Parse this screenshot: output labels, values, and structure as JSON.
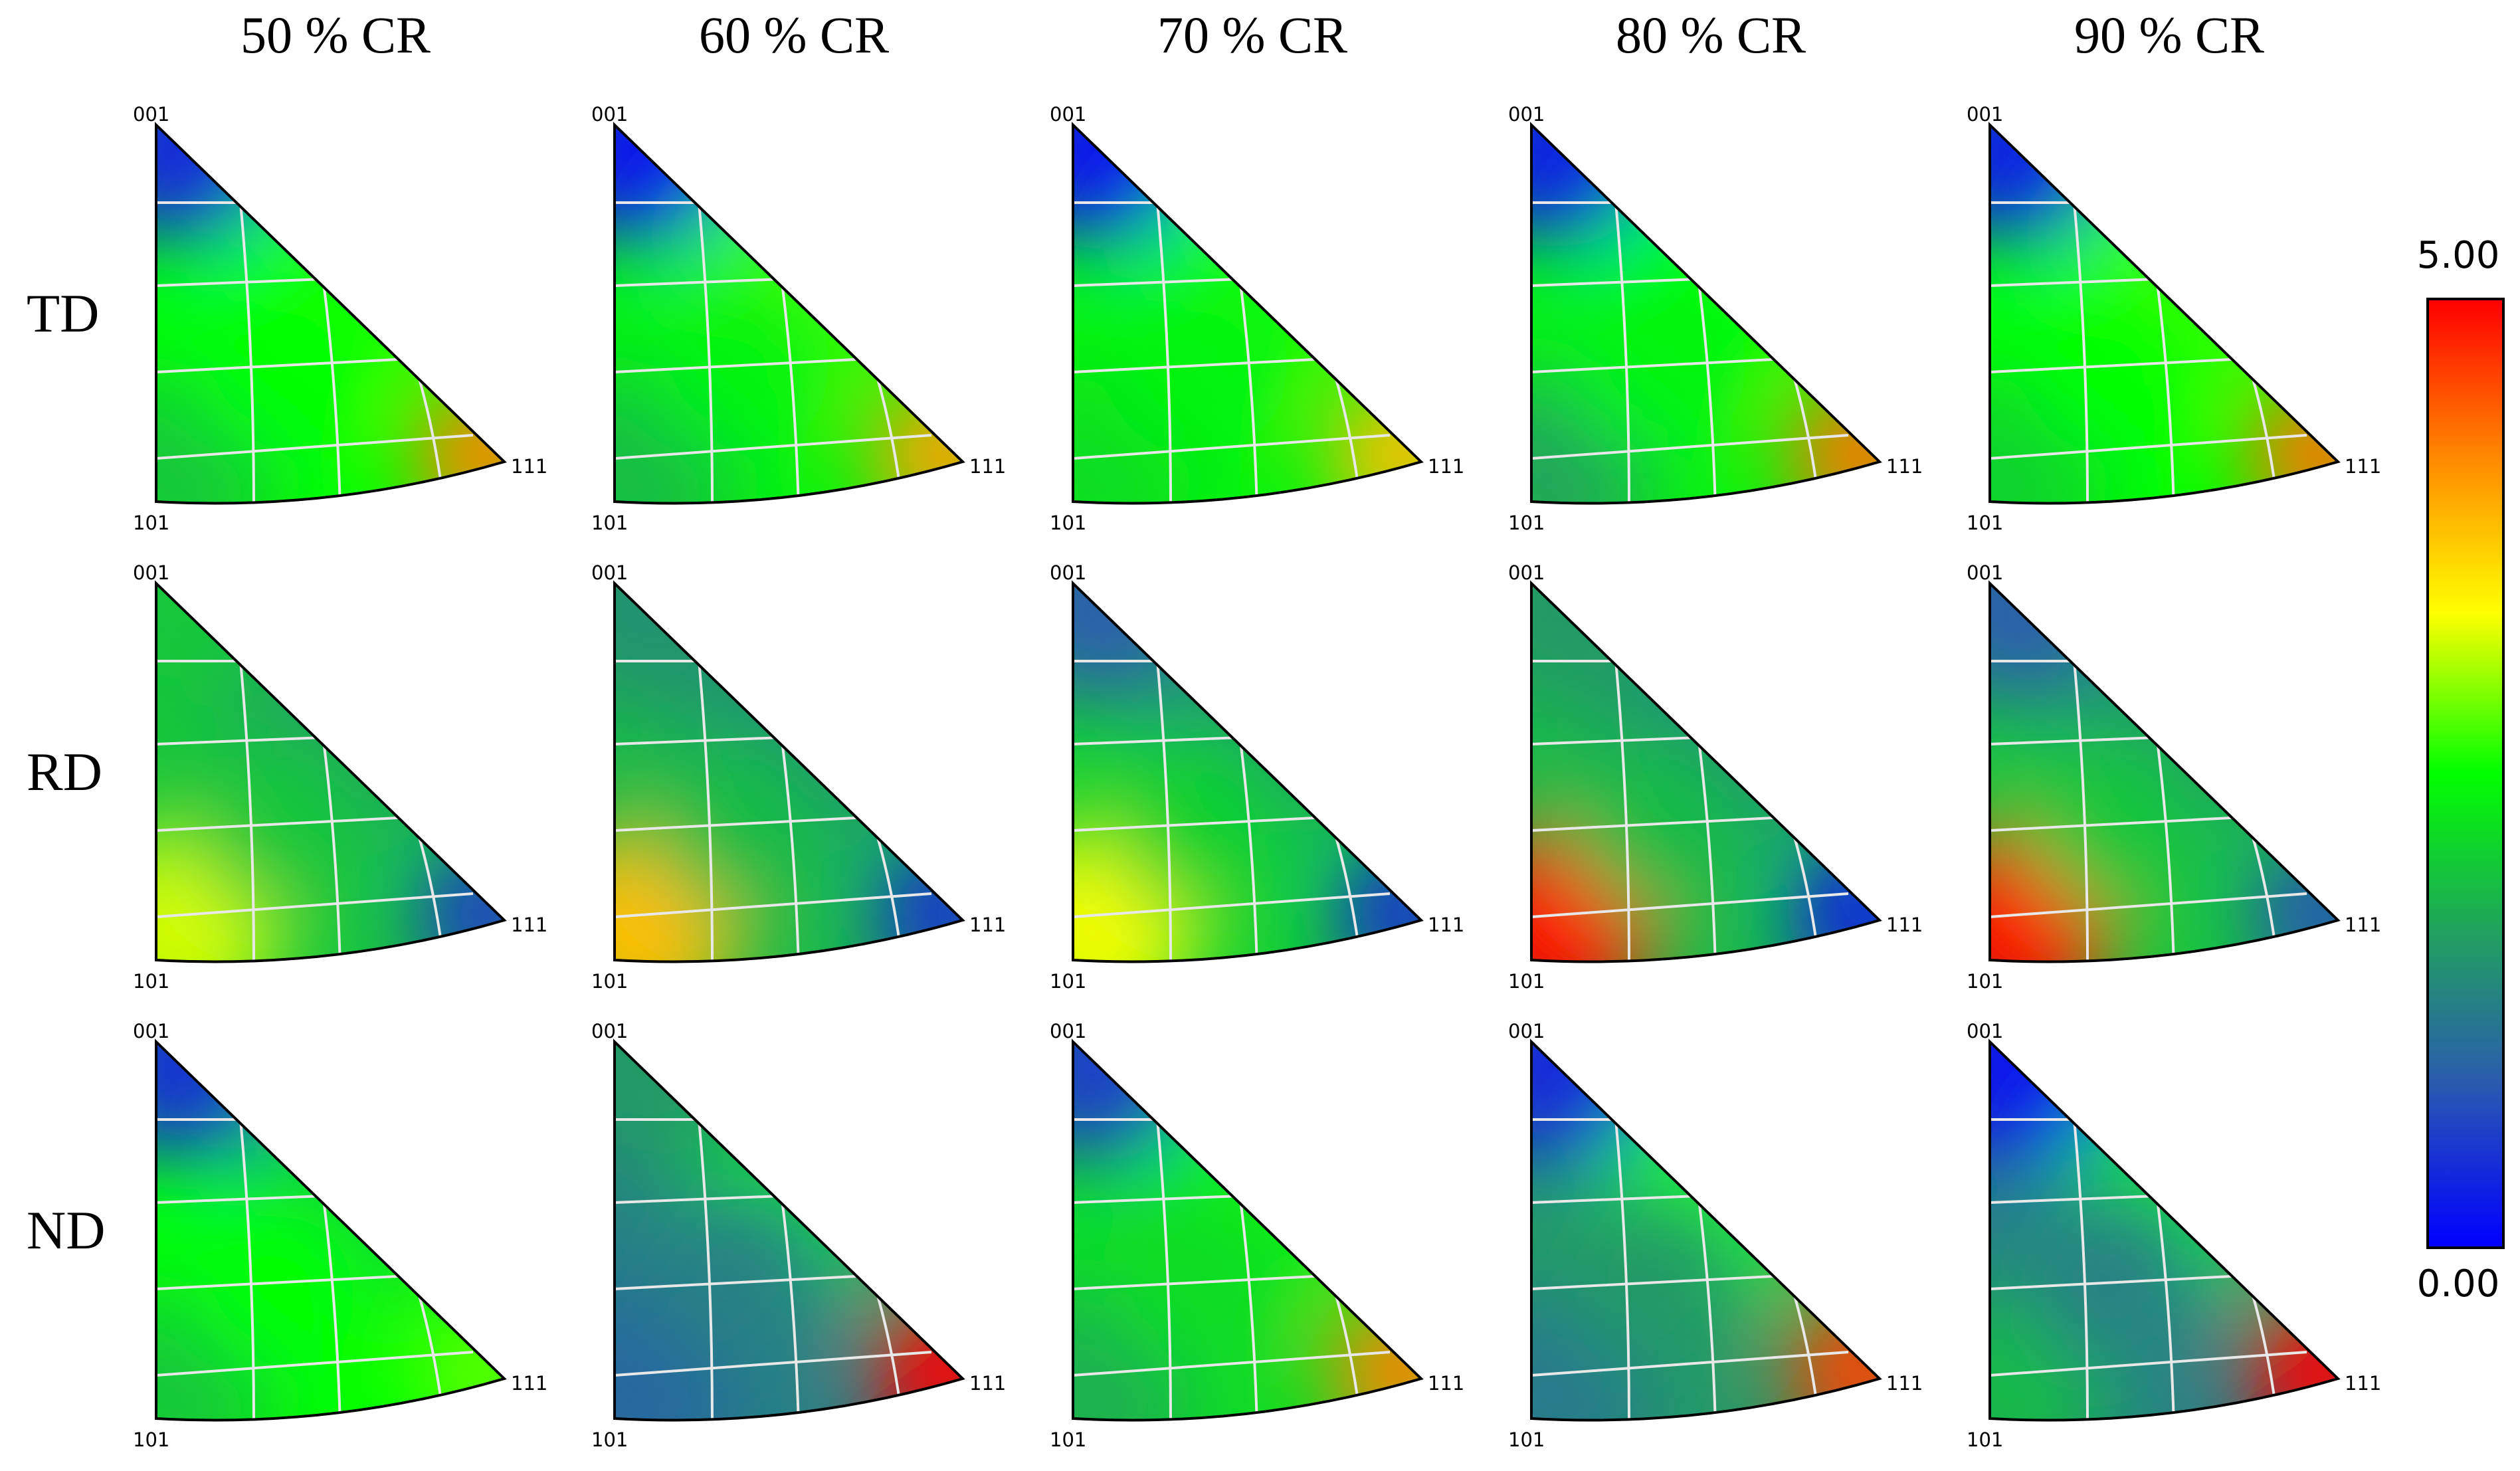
{
  "figure": {
    "column_titles": [
      "50 % CR",
      "60 % CR",
      "70 % CR",
      "80 % CR",
      "90 % CR"
    ],
    "row_labels": [
      "TD",
      "RD",
      "ND"
    ],
    "pole_labels": {
      "top": "001",
      "bottom": "101",
      "right": "111"
    },
    "colorbar": {
      "max_label": "5.00",
      "min_label": "0.00",
      "max_value": 5.0,
      "min_value": 0.0,
      "colors": [
        "#0000ff",
        "#2a5ab0",
        "#21a060",
        "#00ff00",
        "#ffff00",
        "#ff8c00",
        "#ff0000"
      ]
    },
    "panels": [
      {
        "row": "TD",
        "column": "50 % CR",
        "intensity": {
          "corner_001": 0.4,
          "edge_mid": 2.6,
          "corner_101": 2.0,
          "corner_111": 4.2,
          "center": 2.5
        }
      },
      {
        "row": "TD",
        "column": "60 % CR",
        "intensity": {
          "corner_001": 0.2,
          "edge_mid": 2.7,
          "corner_101": 1.9,
          "corner_111": 4.0,
          "center": 2.4
        }
      },
      {
        "row": "TD",
        "column": "70 % CR",
        "intensity": {
          "corner_001": 0.2,
          "edge_mid": 2.6,
          "corner_101": 2.2,
          "corner_111": 3.8,
          "center": 2.4
        }
      },
      {
        "row": "TD",
        "column": "80 % CR",
        "intensity": {
          "corner_001": 0.3,
          "edge_mid": 2.5,
          "corner_101": 1.7,
          "corner_111": 4.3,
          "center": 2.4
        }
      },
      {
        "row": "TD",
        "column": "90 % CR",
        "intensity": {
          "corner_001": 0.3,
          "edge_mid": 2.7,
          "corner_101": 2.1,
          "corner_111": 4.3,
          "center": 2.5
        }
      },
      {
        "row": "RD",
        "column": "50 % CR",
        "intensity": {
          "corner_001": 2.0,
          "edge_mid": 1.6,
          "corner_101": 3.2,
          "corner_111": 0.6,
          "center": 2.0
        }
      },
      {
        "row": "RD",
        "column": "60 % CR",
        "intensity": {
          "corner_001": 1.5,
          "edge_mid": 1.4,
          "corner_101": 3.8,
          "corner_111": 0.5,
          "center": 1.9
        }
      },
      {
        "row": "RD",
        "column": "70 % CR",
        "intensity": {
          "corner_001": 0.9,
          "edge_mid": 1.5,
          "corner_101": 3.3,
          "corner_111": 0.5,
          "center": 2.1
        }
      },
      {
        "row": "RD",
        "column": "80 % CR",
        "intensity": {
          "corner_001": 1.6,
          "edge_mid": 1.4,
          "corner_101": 5.0,
          "corner_111": 0.3,
          "center": 1.9
        }
      },
      {
        "row": "RD",
        "column": "90 % CR",
        "intensity": {
          "corner_001": 0.9,
          "edge_mid": 1.5,
          "corner_101": 5.0,
          "corner_111": 0.8,
          "center": 2.0
        }
      },
      {
        "row": "ND",
        "column": "50 % CR",
        "intensity": {
          "corner_001": 0.5,
          "edge_mid": 2.0,
          "corner_101": 2.0,
          "corner_111": 2.8,
          "center": 2.5
        }
      },
      {
        "row": "ND",
        "column": "60 % CR",
        "intensity": {
          "corner_001": 1.6,
          "edge_mid": 2.2,
          "corner_101": 1.0,
          "corner_111": 5.0,
          "center": 1.3
        }
      },
      {
        "row": "ND",
        "column": "70 % CR",
        "intensity": {
          "corner_001": 0.6,
          "edge_mid": 2.4,
          "corner_101": 1.8,
          "corner_111": 4.2,
          "center": 2.2
        }
      },
      {
        "row": "ND",
        "column": "80 % CR",
        "intensity": {
          "corner_001": 0.4,
          "edge_mid": 2.6,
          "corner_101": 1.2,
          "corner_111": 4.6,
          "center": 1.6
        }
      },
      {
        "row": "ND",
        "column": "90 % CR",
        "intensity": {
          "corner_001": 0.2,
          "edge_mid": 2.3,
          "corner_101": 1.9,
          "corner_111": 5.0,
          "center": 1.3
        }
      }
    ]
  }
}
